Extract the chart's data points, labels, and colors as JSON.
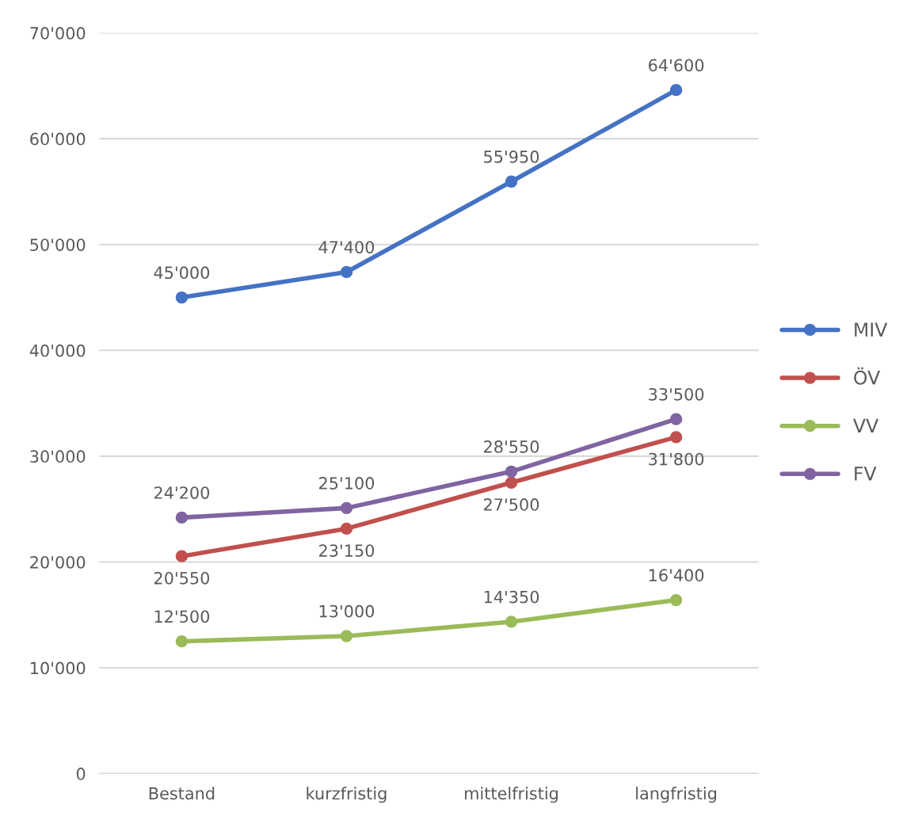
{
  "chart_data": {
    "type": "line",
    "categories": [
      "Bestand",
      "kurzfristig",
      "mittelfristig",
      "langfristig"
    ],
    "series": [
      {
        "name": "MIV",
        "color": "#4472c4",
        "values": [
          45000,
          47400,
          55950,
          64600
        ],
        "value_labels": [
          "45'000",
          "47'400",
          "55'950",
          "64'600"
        ]
      },
      {
        "name": "ÖV",
        "color": "#c0504d",
        "values": [
          20550,
          23150,
          27500,
          31800
        ],
        "value_labels": [
          "20'550",
          "23'150",
          "27'500",
          "31'800"
        ]
      },
      {
        "name": "VV",
        "color": "#9bbb59",
        "values": [
          12500,
          13000,
          14350,
          16400
        ],
        "value_labels": [
          "12'500",
          "13'000",
          "14'350",
          "16'400"
        ]
      },
      {
        "name": "FV",
        "color": "#8064a2",
        "values": [
          24200,
          25100,
          28550,
          33500
        ],
        "value_labels": [
          "24'200",
          "25'100",
          "28'550",
          "33'500"
        ]
      }
    ],
    "ylim": [
      0,
      70000
    ],
    "yticks": [
      {
        "value": 0,
        "label": "0"
      },
      {
        "value": 10000,
        "label": "10'000"
      },
      {
        "value": 20000,
        "label": "20'000"
      },
      {
        "value": 30000,
        "label": "30'000"
      },
      {
        "value": 40000,
        "label": "40'000"
      },
      {
        "value": 50000,
        "label": "50'000"
      },
      {
        "value": 60000,
        "label": "60'000"
      },
      {
        "value": 70000,
        "label": "70'000"
      }
    ],
    "grid": "y",
    "legend": "right",
    "marker": "circle",
    "line_style": "solid"
  }
}
